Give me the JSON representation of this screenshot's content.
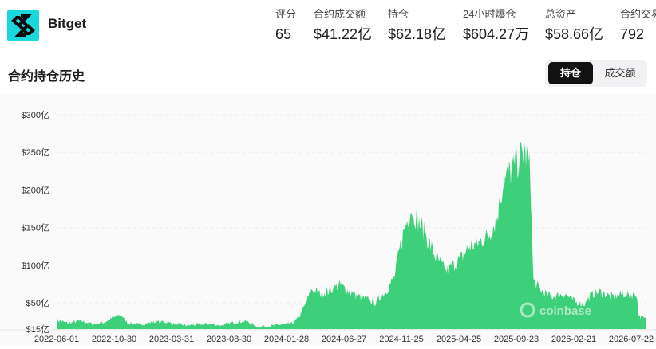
{
  "brand": {
    "name": "Bitget",
    "logo_color": "#1ad7dc"
  },
  "stats": [
    {
      "label": "评分",
      "value": "65"
    },
    {
      "label": "合约成交额",
      "value": "$41.22亿"
    },
    {
      "label": "持仓",
      "value": "$62.18亿"
    },
    {
      "label": "24小时爆仓",
      "value": "$604.27万"
    },
    {
      "label": "总资产",
      "value": "$58.66亿"
    },
    {
      "label": "合约交易",
      "value": "792"
    }
  ],
  "section": {
    "title": "合约持仓历史"
  },
  "tabs": [
    {
      "label": "持仓",
      "active": true
    },
    {
      "label": "成交额",
      "active": false
    }
  ],
  "watermark": "coinbase",
  "chart_data": {
    "type": "area",
    "color": "#3ecf7a",
    "y_unit": "亿 USD",
    "ylim": [
      15,
      300
    ],
    "y_ticks": [
      15,
      50,
      100,
      150,
      200,
      250,
      300
    ],
    "y_tick_labels": [
      "$15亿",
      "$50亿",
      "$100亿",
      "$150亿",
      "$200亿",
      "$250亿",
      "$300亿"
    ],
    "x_tick_labels": [
      "2022-06-01",
      "2022-10-30",
      "2023-03-31",
      "2023-08-30",
      "2024-01-28",
      "2024-06-27",
      "2024-11-25",
      "2025-04-25",
      "2025-09-23",
      "2026-02-21",
      "2026-07-22"
    ],
    "grid": true,
    "x_start": "2022-06-01",
    "x_end": "2026-07-31",
    "series": [
      {
        "points": [
          [
            "2022-06-01",
            27
          ],
          [
            "2022-07-01",
            23
          ],
          [
            "2022-08-01",
            26
          ],
          [
            "2022-09-01",
            22
          ],
          [
            "2022-10-01",
            24
          ],
          [
            "2022-11-01",
            32
          ],
          [
            "2022-11-15",
            34
          ],
          [
            "2022-12-01",
            23
          ],
          [
            "2023-01-01",
            21
          ],
          [
            "2023-02-01",
            24
          ],
          [
            "2023-03-01",
            25
          ],
          [
            "2023-04-01",
            22
          ],
          [
            "2023-05-01",
            20
          ],
          [
            "2023-06-01",
            21
          ],
          [
            "2023-07-01",
            22
          ],
          [
            "2023-08-01",
            20
          ],
          [
            "2023-09-01",
            24
          ],
          [
            "2023-10-01",
            26
          ],
          [
            "2023-11-01",
            18
          ],
          [
            "2023-12-01",
            19
          ],
          [
            "2024-01-01",
            21
          ],
          [
            "2024-01-28",
            22
          ],
          [
            "2024-02-15",
            30
          ],
          [
            "2024-03-01",
            45
          ],
          [
            "2024-03-20",
            68
          ],
          [
            "2024-04-10",
            62
          ],
          [
            "2024-05-01",
            65
          ],
          [
            "2024-06-01",
            74
          ],
          [
            "2024-07-01",
            62
          ],
          [
            "2024-08-01",
            56
          ],
          [
            "2024-09-01",
            50
          ],
          [
            "2024-10-01",
            68
          ],
          [
            "2024-10-20",
            85
          ],
          [
            "2024-11-01",
            120
          ],
          [
            "2024-11-15",
            150
          ],
          [
            "2024-12-01",
            176
          ],
          [
            "2024-12-15",
            162
          ],
          [
            "2025-01-01",
            148
          ],
          [
            "2025-02-01",
            112
          ],
          [
            "2025-03-01",
            92
          ],
          [
            "2025-03-20",
            100
          ],
          [
            "2025-04-10",
            110
          ],
          [
            "2025-05-01",
            125
          ],
          [
            "2025-05-20",
            128
          ],
          [
            "2025-06-01",
            133
          ],
          [
            "2025-06-20",
            140
          ],
          [
            "2025-07-10",
            162
          ],
          [
            "2025-07-25",
            205
          ],
          [
            "2025-08-10",
            222
          ],
          [
            "2025-08-25",
            230
          ],
          [
            "2025-09-10",
            245
          ],
          [
            "2025-09-20",
            250
          ],
          [
            "2025-09-28",
            240
          ],
          [
            "2025-10-05",
            220
          ],
          [
            "2025-10-12",
            80
          ],
          [
            "2025-11-01",
            66
          ],
          [
            "2025-12-01",
            58
          ],
          [
            "2026-01-01",
            62
          ],
          [
            "2026-02-01",
            50
          ],
          [
            "2026-02-21",
            48
          ],
          [
            "2026-03-10",
            60
          ],
          [
            "2026-04-01",
            65
          ],
          [
            "2026-05-01",
            58
          ],
          [
            "2026-06-01",
            62
          ],
          [
            "2026-06-20",
            60
          ],
          [
            "2026-07-05",
            63
          ],
          [
            "2026-07-12",
            32
          ],
          [
            "2026-07-31",
            28
          ]
        ]
      }
    ]
  }
}
